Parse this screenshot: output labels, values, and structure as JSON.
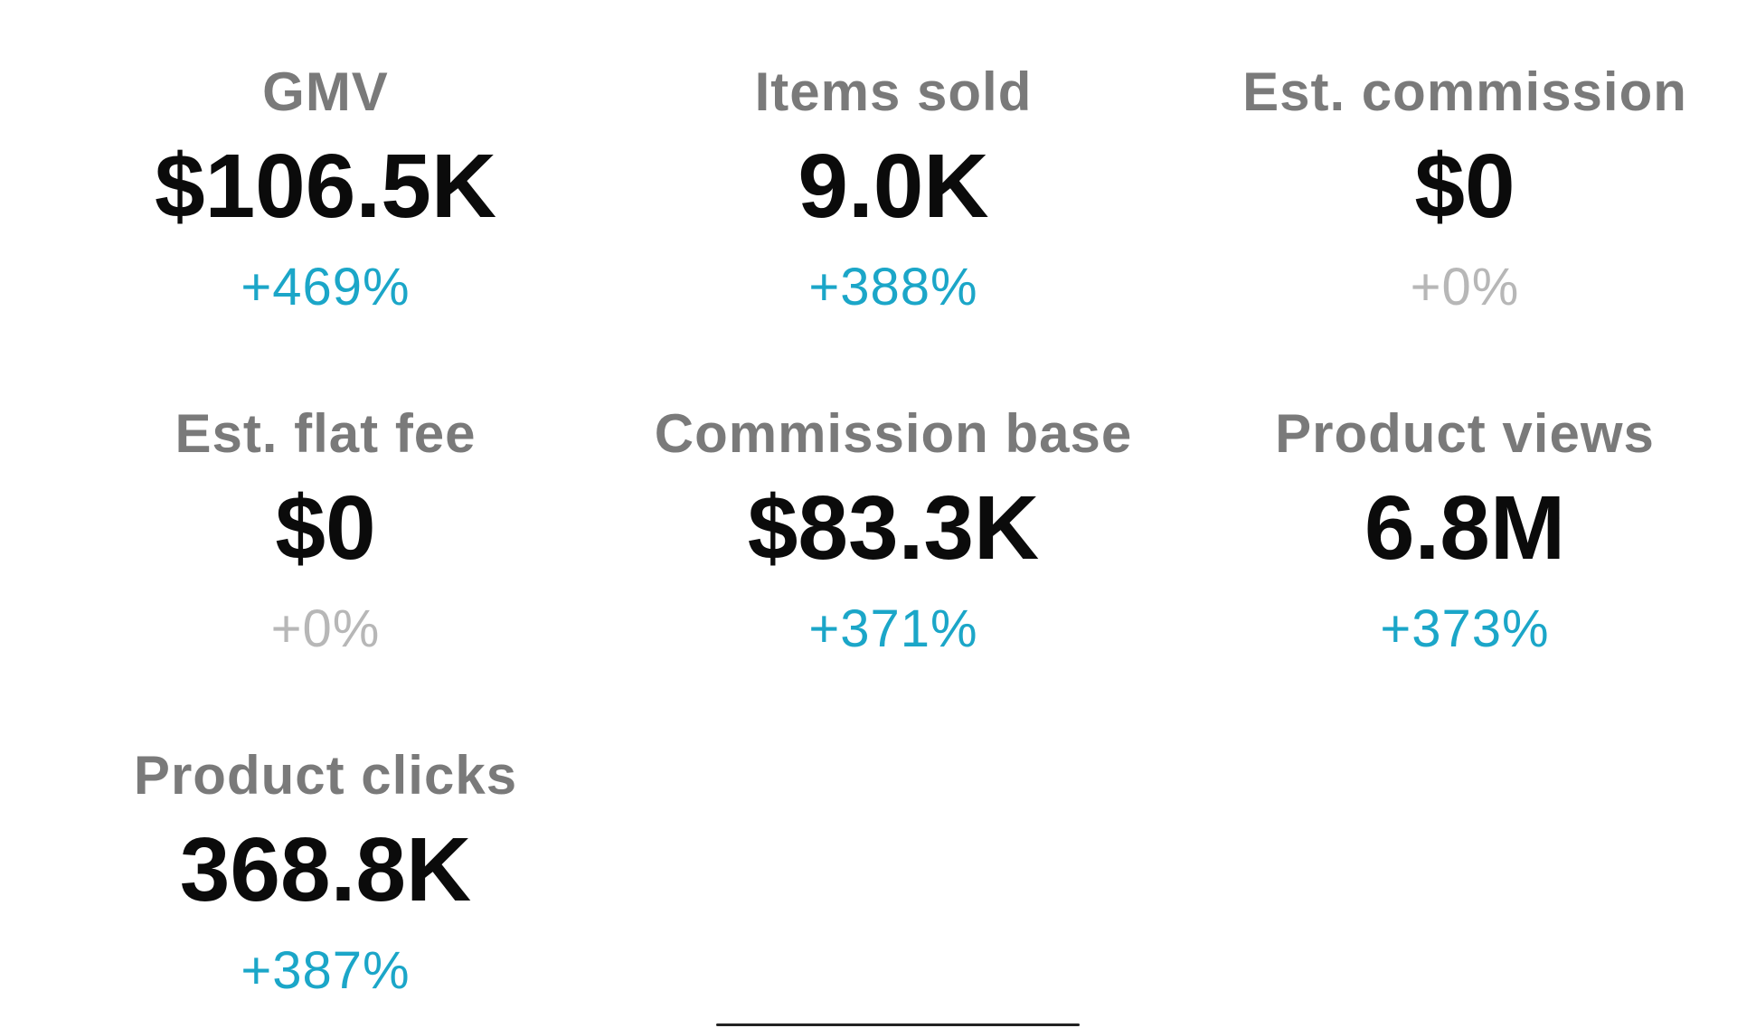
{
  "metrics": [
    {
      "label": "GMV",
      "value": "$106.5K",
      "change": "+469%"
    },
    {
      "label": "Items sold",
      "value": "9.0K",
      "change": "+388%"
    },
    {
      "label": "Est. commission",
      "value": "$0",
      "change": "+0%"
    },
    {
      "label": "Est. flat fee",
      "value": "$0",
      "change": "+0%"
    },
    {
      "label": "Commission base",
      "value": "$83.3K",
      "change": "+371%"
    },
    {
      "label": "Product views",
      "value": "6.8M",
      "change": "+373%"
    },
    {
      "label": "Product clicks",
      "value": "368.8K",
      "change": "+387%"
    }
  ],
  "colors": {
    "positive_change": "#1ba6c8",
    "neutral_change": "#b7b7b7",
    "label": "#7a7a7a",
    "value": "#0b0b0b"
  }
}
